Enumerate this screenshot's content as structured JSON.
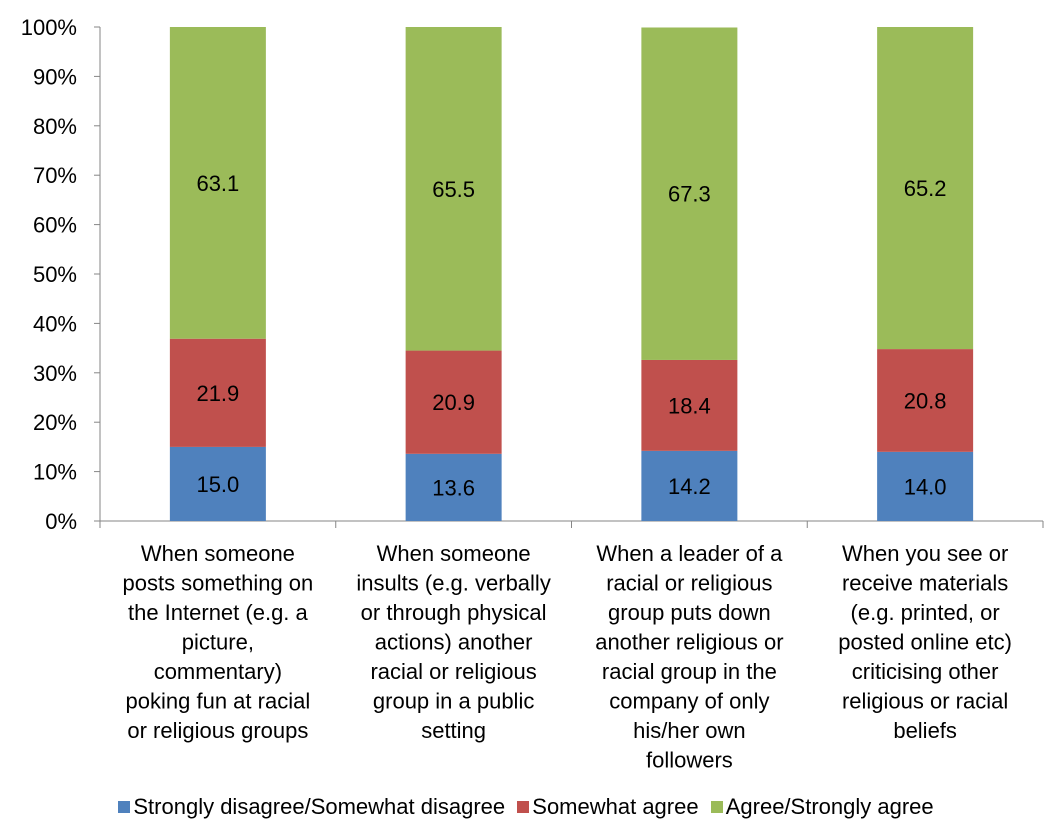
{
  "chart_data": {
    "type": "bar",
    "stacked": true,
    "percent_axis": true,
    "ylim": [
      0,
      100
    ],
    "y_ticks": [
      "0%",
      "10%",
      "20%",
      "30%",
      "40%",
      "50%",
      "60%",
      "70%",
      "80%",
      "90%",
      "100%"
    ],
    "categories": [
      [
        "When someone",
        "posts something on",
        "the Internet (e.g. a",
        "picture,",
        "commentary)",
        "poking fun at racial",
        "or religious groups"
      ],
      [
        "When someone",
        "insults (e.g. verbally",
        "or through physical",
        "actions) another",
        "racial or religious",
        "group in a public",
        "setting"
      ],
      [
        "When a leader of a",
        "racial or religious",
        "group puts down",
        "another religious or",
        "racial group in the",
        "company of only",
        "his/her own",
        "followers"
      ],
      [
        "When you see or",
        "receive materials",
        "(e.g. printed, or",
        "posted online etc)",
        "criticising other",
        "religious or racial",
        "beliefs"
      ]
    ],
    "series": [
      {
        "name": "Strongly disagree/Somewhat disagree",
        "color": "#4f81bd",
        "values": [
          15.0,
          13.6,
          14.2,
          14.0
        ],
        "labels": [
          "15.0",
          "13.6",
          "14.2",
          "14.0"
        ]
      },
      {
        "name": "Somewhat agree",
        "color": "#c0504d",
        "values": [
          21.9,
          20.9,
          18.4,
          20.8
        ],
        "labels": [
          "21.9",
          "20.9",
          "18.4",
          "20.8"
        ]
      },
      {
        "name": "Agree/Strongly agree",
        "color": "#9bbb59",
        "values": [
          63.1,
          65.5,
          67.3,
          65.2
        ],
        "labels": [
          "63.1",
          "65.5",
          "67.3",
          "65.2"
        ]
      }
    ],
    "legend_position": "bottom",
    "grid": false
  }
}
